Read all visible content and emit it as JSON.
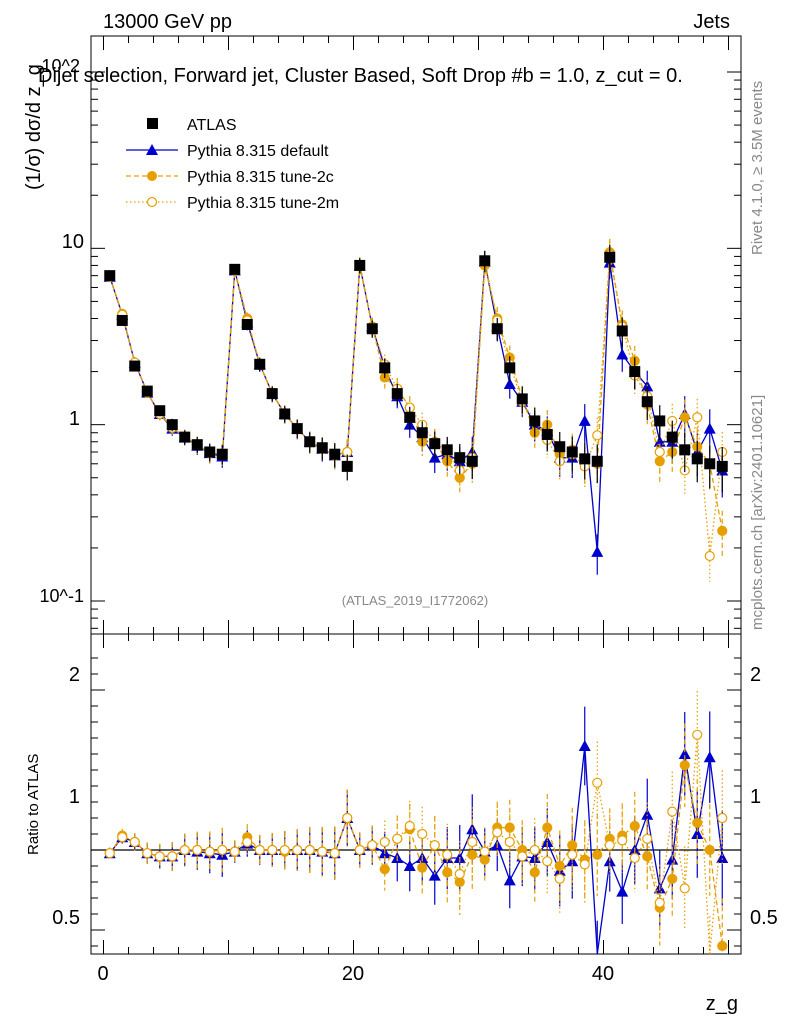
{
  "header": {
    "left": "13000 GeV pp",
    "right": "Jets"
  },
  "title": "Dijet selection, Forward jet, Cluster Based, Soft Drop #b = 1.0, z_cut = 0.",
  "side_labels": {
    "top": "Rivet 4.1.0, ≥ 3.5M events",
    "bottom": "mcplots.cern.ch [arXiv:2401.10621]"
  },
  "watermark": "(ATLAS_2019_I1772062)",
  "colors": {
    "atlas": "#000000",
    "default": "#0000cc",
    "tune2c": "#e69f00",
    "tune2m": "#e69f00"
  },
  "chart_data": [
    {
      "type": "scatter",
      "panel": "main",
      "ylabel": "(1/σ) dσ/d z_g",
      "yscale": "log",
      "ylim": [
        0.065,
        160
      ],
      "xlim": [
        -1,
        51
      ],
      "ytick_labels": [
        "10^2",
        "10",
        "1",
        "10^-1"
      ],
      "x": [
        0.5,
        1.5,
        2.5,
        3.5,
        4.5,
        5.5,
        6.5,
        7.5,
        8.5,
        9.5,
        10.5,
        11.5,
        12.5,
        13.5,
        14.5,
        15.5,
        16.5,
        17.5,
        18.5,
        19.5,
        20.5,
        21.5,
        22.5,
        23.5,
        24.5,
        25.5,
        26.5,
        27.5,
        28.5,
        29.5,
        30.5,
        31.5,
        32.5,
        33.5,
        34.5,
        35.5,
        36.5,
        37.5,
        38.5,
        39.5,
        40.5,
        41.5,
        42.5,
        43.5,
        44.5,
        45.5,
        46.5,
        47.5,
        48.5,
        49.5
      ],
      "series": [
        {
          "name": "ATLAS",
          "values": [
            7.0,
            3.9,
            2.15,
            1.55,
            1.2,
            1.0,
            0.85,
            0.77,
            0.7,
            0.68,
            7.6,
            3.7,
            2.2,
            1.5,
            1.15,
            0.95,
            0.8,
            0.74,
            0.68,
            0.58,
            8.0,
            3.5,
            2.1,
            1.5,
            1.1,
            0.9,
            0.78,
            0.72,
            0.65,
            0.62,
            8.5,
            3.5,
            2.1,
            1.4,
            1.05,
            0.88,
            0.75,
            0.7,
            0.64,
            0.62,
            8.9,
            3.4,
            2.0,
            1.35,
            1.05,
            0.85,
            0.72,
            0.64,
            0.6,
            0.58
          ]
        },
        {
          "name": "Pythia 8.315 default",
          "values": [
            6.9,
            4.2,
            2.25,
            1.52,
            1.15,
            0.95,
            0.85,
            0.76,
            0.69,
            0.66,
            7.5,
            3.8,
            2.2,
            1.5,
            1.15,
            0.95,
            0.8,
            0.73,
            0.67,
            0.7,
            8.0,
            3.6,
            2.1,
            1.45,
            1.0,
            0.85,
            0.65,
            0.68,
            0.62,
            0.7,
            8.4,
            3.6,
            1.7,
            1.35,
            1.0,
            0.92,
            0.65,
            0.65,
            1.05,
            0.19,
            8.3,
            2.5,
            2.0,
            1.65,
            0.8,
            0.8,
            1.15,
            0.7,
            0.95,
            0.55
          ]
        },
        {
          "name": "Pythia 8.315 tune-2c",
          "values": [
            6.9,
            4.25,
            2.25,
            1.52,
            1.15,
            0.96,
            0.85,
            0.77,
            0.69,
            0.68,
            7.5,
            4.0,
            2.2,
            1.5,
            1.15,
            0.95,
            0.8,
            0.73,
            0.67,
            0.7,
            8.0,
            3.6,
            1.85,
            1.6,
            1.25,
            0.8,
            0.8,
            0.62,
            0.5,
            0.6,
            8.0,
            4.0,
            2.4,
            1.4,
            0.9,
            1.0,
            0.68,
            0.72,
            0.6,
            0.6,
            9.5,
            3.7,
            2.3,
            1.3,
            0.62,
            0.7,
            1.1,
            0.75,
            0.6,
            0.25
          ]
        },
        {
          "name": "Pythia 8.315 tune-2m",
          "values": [
            6.9,
            4.2,
            2.25,
            1.52,
            1.15,
            0.96,
            0.85,
            0.77,
            0.69,
            0.68,
            7.5,
            3.9,
            2.2,
            1.5,
            1.15,
            0.95,
            0.8,
            0.73,
            0.67,
            0.7,
            8.0,
            3.6,
            2.2,
            1.6,
            1.25,
            1.0,
            0.8,
            0.7,
            0.55,
            0.65,
            8.4,
            3.9,
            2.2,
            1.35,
            1.05,
            0.82,
            0.62,
            0.68,
            0.58,
            0.87,
            9.2,
            3.6,
            1.9,
            1.45,
            0.7,
            1.05,
            0.55,
            1.1,
            0.18,
            0.7
          ]
        }
      ]
    },
    {
      "type": "scatter",
      "panel": "ratio",
      "ylabel": "Ratio to ATLAS",
      "xlabel": "z_g",
      "ylim": [
        0.35,
        2.35
      ],
      "xlim": [
        -1,
        51
      ],
      "ytick_labels": [
        "0.5",
        "1",
        "2"
      ],
      "xtick_labels": [
        "0",
        "20",
        "40"
      ],
      "x": [
        0.5,
        1.5,
        2.5,
        3.5,
        4.5,
        5.5,
        6.5,
        7.5,
        8.5,
        9.5,
        10.5,
        11.5,
        12.5,
        13.5,
        14.5,
        15.5,
        16.5,
        17.5,
        18.5,
        19.5,
        20.5,
        21.5,
        22.5,
        23.5,
        24.5,
        25.5,
        26.5,
        27.5,
        28.5,
        29.5,
        30.5,
        31.5,
        32.5,
        33.5,
        34.5,
        35.5,
        36.5,
        37.5,
        38.5,
        39.5,
        40.5,
        41.5,
        42.5,
        43.5,
        44.5,
        45.5,
        46.5,
        47.5,
        48.5,
        49.5
      ],
      "series": [
        {
          "name": "Pythia 8.315 default",
          "values": [
            0.98,
            1.08,
            1.05,
            0.98,
            0.96,
            0.96,
            1.0,
            0.99,
            0.98,
            0.97,
            0.99,
            1.04,
            1.0,
            1.0,
            1.0,
            1.0,
            1.0,
            0.99,
            0.98,
            1.2,
            1.0,
            1.03,
            0.98,
            0.95,
            0.9,
            0.95,
            0.84,
            0.95,
            0.95,
            1.13,
            0.99,
            1.03,
            0.81,
            0.96,
            0.95,
            1.05,
            0.87,
            0.93,
            1.65,
            0.3,
            0.93,
            0.74,
            1.0,
            1.22,
            0.76,
            0.94,
            1.6,
            1.1,
            1.58,
            0.95
          ]
        },
        {
          "name": "Pythia 8.315 tune-2c",
          "values": [
            0.98,
            1.09,
            1.05,
            0.98,
            0.96,
            0.96,
            1.0,
            1.0,
            0.99,
            1.0,
            0.99,
            1.08,
            1.0,
            1.0,
            0.99,
            1.0,
            1.0,
            0.99,
            0.98,
            1.2,
            1.0,
            1.03,
            0.88,
            1.07,
            1.13,
            0.89,
            1.03,
            0.86,
            0.8,
            0.97,
            0.94,
            1.14,
            1.14,
            1.0,
            0.86,
            1.14,
            0.9,
            1.03,
            0.94,
            0.97,
            1.07,
            1.09,
            1.15,
            0.96,
            0.64,
            0.82,
            1.53,
            1.17,
            1.0,
            0.4
          ]
        },
        {
          "name": "Pythia 8.315 tune-2m",
          "values": [
            0.98,
            1.08,
            1.05,
            0.98,
            0.96,
            0.96,
            1.0,
            1.0,
            0.99,
            1.0,
            0.99,
            1.05,
            1.0,
            1.0,
            1.0,
            1.0,
            1.0,
            0.99,
            0.98,
            1.2,
            1.0,
            1.03,
            1.05,
            1.07,
            1.15,
            1.1,
            1.03,
            0.97,
            0.85,
            1.05,
            0.99,
            1.11,
            1.05,
            0.96,
            1.0,
            0.93,
            0.82,
            0.97,
            0.91,
            1.42,
            1.03,
            1.06,
            0.95,
            1.07,
            0.67,
            1.24,
            0.76,
            1.72,
            0.3,
            1.2
          ]
        }
      ]
    }
  ]
}
